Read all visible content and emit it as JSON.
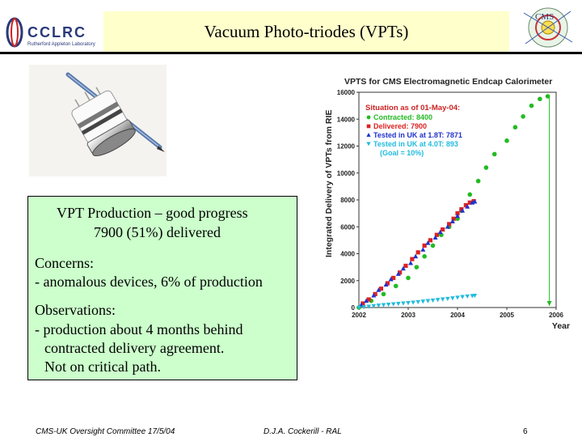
{
  "header": {
    "title": "Vacuum Photo-triodes (VPTs)",
    "left_logo_text": "CCLRC",
    "left_logo_subtext": "Rutherford Appleton Laboratory",
    "right_logo_text": "CMS"
  },
  "textbox": {
    "line1": "VPT Production – good progress",
    "line2": "7900 (51%) delivered",
    "concerns_label": "Concerns:",
    "concerns_item": "- anomalous devices, 6% of production",
    "observations_label": "Observations:",
    "obs_line1": "- production about 4 months behind",
    "obs_line2": "contracted delivery agreement.",
    "obs_line3": "Not on critical path."
  },
  "footer": {
    "left": "CMS-UK Oversight Committee 17/5/04",
    "center": "D.J.A. Cockerill - RAL",
    "page": "6"
  },
  "chart_data": {
    "type": "scatter",
    "title": "VPTS for CMS Electromagnetic Endcap Calorimeter",
    "ylabel": "Integrated Delivery of VPTs from RIE",
    "xlabel": "Year",
    "xlim": [
      2002,
      2006
    ],
    "ylim": [
      0,
      16000
    ],
    "x_ticks": [
      "2002",
      "2003",
      "2004",
      "2005",
      "2006"
    ],
    "y_ticks": [
      "0",
      "2000",
      "4000",
      "6000",
      "8000",
      "10000",
      "12000",
      "14000",
      "16000"
    ],
    "legend_title": "Situation as of 01-May-04:",
    "legend": [
      {
        "label": "Contracted: 8400",
        "color": "#22bb22",
        "marker": "circle"
      },
      {
        "label": "Delivered: 7900",
        "color": "#dd2222",
        "marker": "square"
      },
      {
        "label": "Tested in UK at 1.8T: 7871",
        "color": "#2233cc",
        "marker": "triangle-up"
      },
      {
        "label": "Tested in UK at 4.0T: 893",
        "color": "#22bbdd",
        "marker": "triangle-down"
      },
      {
        "label": "(Goal = 10%)",
        "color": "#22bbdd",
        "marker": "none"
      }
    ],
    "series": [
      {
        "name": "Contracted",
        "color": "#22bb22",
        "marker": "circle",
        "x": [
          2002.0,
          2002.25,
          2002.5,
          2002.75,
          2003.0,
          2003.17,
          2003.33,
          2003.5,
          2003.67,
          2003.83,
          2004.0,
          2004.08,
          2004.25,
          2004.42,
          2004.58,
          2004.75,
          2005.0,
          2005.17,
          2005.33,
          2005.5,
          2005.67,
          2005.83
        ],
        "y": [
          0,
          500,
          1000,
          1600,
          2200,
          3000,
          3800,
          4600,
          5400,
          6000,
          6600,
          7200,
          8400,
          9400,
          10400,
          11400,
          12400,
          13400,
          14200,
          15000,
          15500,
          15700
        ]
      },
      {
        "name": "Delivered",
        "color": "#dd2222",
        "marker": "square",
        "x": [
          2002.08,
          2002.2,
          2002.33,
          2002.45,
          2002.58,
          2002.7,
          2002.83,
          2002.95,
          2003.08,
          2003.2,
          2003.33,
          2003.45,
          2003.58,
          2003.7,
          2003.83,
          2003.92,
          2004.0,
          2004.08,
          2004.17,
          2004.25,
          2004.33
        ],
        "y": [
          300,
          600,
          1000,
          1400,
          1800,
          2200,
          2600,
          3100,
          3600,
          4100,
          4600,
          5000,
          5400,
          5800,
          6200,
          6600,
          7000,
          7300,
          7600,
          7800,
          7900
        ]
      },
      {
        "name": "Tested 1.8T",
        "color": "#2233cc",
        "marker": "triangle-up",
        "x": [
          2002.05,
          2002.15,
          2002.3,
          2002.4,
          2002.55,
          2002.65,
          2002.8,
          2002.9,
          2003.05,
          2003.15,
          2003.3,
          2003.4,
          2003.55,
          2003.65,
          2003.8,
          2003.9,
          2004.0,
          2004.1,
          2004.2,
          2004.3,
          2004.35
        ],
        "y": [
          200,
          500,
          900,
          1300,
          1700,
          2100,
          2500,
          2900,
          3300,
          3800,
          4300,
          4800,
          5200,
          5600,
          6000,
          6400,
          6800,
          7200,
          7500,
          7800,
          7871
        ]
      },
      {
        "name": "Tested 4.0T",
        "color": "#22bbdd",
        "marker": "triangle-down",
        "x": [
          2002.0,
          2002.1,
          2002.2,
          2002.3,
          2002.4,
          2002.5,
          2002.6,
          2002.7,
          2002.8,
          2002.9,
          2003.0,
          2003.1,
          2003.2,
          2003.3,
          2003.4,
          2003.5,
          2003.6,
          2003.7,
          2003.8,
          2003.9,
          2004.0,
          2004.1,
          2004.2,
          2004.3,
          2004.35
        ],
        "y": [
          0,
          40,
          80,
          120,
          160,
          200,
          230,
          260,
          290,
          320,
          350,
          380,
          420,
          460,
          500,
          540,
          580,
          620,
          660,
          700,
          750,
          800,
          840,
          870,
          893
        ]
      }
    ]
  }
}
